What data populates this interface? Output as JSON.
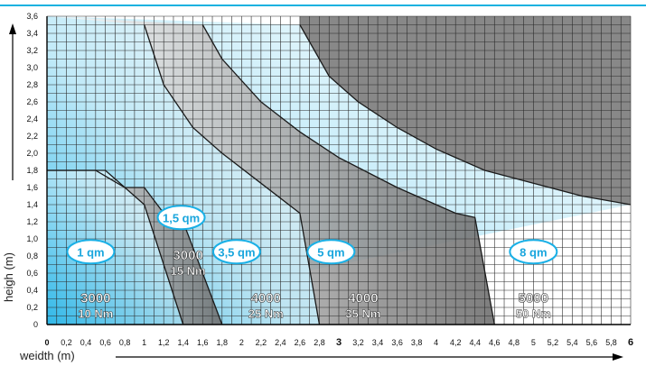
{
  "colors": {
    "cyan": "#1ab0e6",
    "cyan_light": "#bde9f8",
    "gray": "#8a8a8a",
    "gray_dark": "#6f6f6f",
    "grid": "#2b2b2b",
    "grey_zone": "#888888",
    "accent_line": "#16b2e0"
  },
  "chart_data": {
    "type": "area",
    "xlabel": "weidth (m)",
    "ylabel": "heigh (m)",
    "xlim": [
      0,
      6
    ],
    "ylim": [
      0,
      3.6
    ],
    "x_ticks": [
      "0",
      "0,2",
      "0,4",
      "0,6",
      "0,8",
      "1",
      "1,2",
      "1,4",
      "1,6",
      "1,8",
      "2",
      "2,2",
      "2,4",
      "2,6",
      "2,8",
      "3",
      "3,2",
      "3,4",
      "3,6",
      "3,8",
      "4",
      "4,2",
      "4,4",
      "4,6",
      "4,8",
      "5",
      "5,2",
      "5,4",
      "5,6",
      "5,8",
      "6"
    ],
    "y_ticks": [
      "0",
      "0,2",
      "0,4",
      "0,6",
      "0,8",
      "1,0",
      "1,2",
      "1,4",
      "1,6",
      "1,8",
      "2,0",
      "2,2",
      "2,4",
      "2,6",
      "2,8",
      "3,0",
      "3,2",
      "3,4",
      "3,6"
    ],
    "grid": true,
    "zones": [
      {
        "area": "1 qm",
        "motor": "3000",
        "torque": "10 Nm",
        "boundary": [
          [
            0,
            1.8
          ],
          [
            0.6,
            1.8
          ],
          [
            1,
            1.4
          ],
          [
            1.4,
            0
          ]
        ]
      },
      {
        "area": "1,5 qm",
        "motor": "3000",
        "torque": "15 Nm",
        "boundary": [
          [
            0,
            1.8
          ],
          [
            0.5,
            1.8
          ],
          [
            0.8,
            1.6
          ],
          [
            1,
            1.6
          ],
          [
            1.2,
            1.3
          ],
          [
            1.4,
            1.2
          ],
          [
            1.6,
            0.6
          ],
          [
            1.8,
            0
          ]
        ]
      },
      {
        "area": "3,5 qm",
        "motor": "4000",
        "torque": "25 Nm",
        "boundary": [
          [
            1,
            3.5
          ],
          [
            1.2,
            2.8
          ],
          [
            1.5,
            2.3
          ],
          [
            1.8,
            2.0
          ],
          [
            2.2,
            1.65
          ],
          [
            2.6,
            1.3
          ],
          [
            2.8,
            0
          ]
        ]
      },
      {
        "area": "5 qm",
        "motor": "4000",
        "torque": "35 Nm",
        "boundary": [
          [
            1.6,
            3.5
          ],
          [
            1.8,
            3.1
          ],
          [
            2.2,
            2.6
          ],
          [
            2.6,
            2.25
          ],
          [
            3.0,
            1.95
          ],
          [
            3.6,
            1.6
          ],
          [
            4.2,
            1.3
          ],
          [
            4.4,
            1.25
          ],
          [
            4.6,
            0
          ]
        ]
      },
      {
        "area": "8 qm",
        "motor": "5000",
        "torque": "50 Nm",
        "boundary": [
          [
            2.6,
            3.5
          ],
          [
            2.9,
            2.9
          ],
          [
            3.2,
            2.6
          ],
          [
            3.6,
            2.3
          ],
          [
            4.0,
            2.05
          ],
          [
            4.5,
            1.8
          ],
          [
            5.0,
            1.65
          ],
          [
            5.5,
            1.5
          ],
          [
            6.0,
            1.4
          ]
        ]
      }
    ]
  }
}
